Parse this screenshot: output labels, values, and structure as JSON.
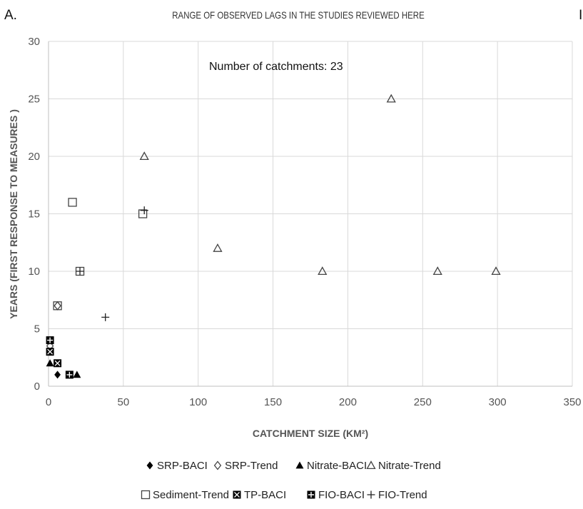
{
  "panel_label": "A.",
  "edge_fragment": "I",
  "chart_data": {
    "type": "scatter",
    "title": "RANGE OF OBSERVED LAGS  IN THE STUDIES REVIEWED HERE",
    "xlabel": "CATCHMENT SIZE (KM²)",
    "ylabel": "YEARS (FIRST RESPONSE TO MEASURES )",
    "xlim": [
      0,
      350
    ],
    "ylim": [
      0,
      30
    ],
    "x_ticks": [
      0,
      50,
      100,
      150,
      200,
      250,
      300,
      350
    ],
    "y_ticks": [
      0,
      5,
      10,
      15,
      20,
      25,
      30
    ],
    "grid": true,
    "legend_placement": "bottom",
    "annotation": "Number of catchments: 23",
    "series": [
      {
        "name": "SRP-BACI",
        "marker": "diamond-filled",
        "points": [
          [
            6,
            1
          ]
        ]
      },
      {
        "name": "SRP-Trend",
        "marker": "diamond-open",
        "points": [
          [
            1,
            3.5
          ],
          [
            6,
            7
          ]
        ]
      },
      {
        "name": "Nitrate-BACI",
        "marker": "triangle-filled",
        "points": [
          [
            1,
            2
          ],
          [
            19,
            1
          ]
        ]
      },
      {
        "name": "Nitrate-Trend",
        "marker": "triangle-open",
        "points": [
          [
            64,
            20
          ],
          [
            113,
            12
          ],
          [
            183,
            10
          ],
          [
            229,
            25
          ],
          [
            260,
            10
          ],
          [
            299,
            10
          ]
        ]
      },
      {
        "name": "Sediment-Trend",
        "marker": "square-open",
        "points": [
          [
            16,
            16
          ],
          [
            21,
            10
          ],
          [
            6,
            7
          ],
          [
            63,
            15
          ]
        ]
      },
      {
        "name": "TP-BACI",
        "marker": "square-x",
        "points": [
          [
            1,
            3
          ],
          [
            6,
            2
          ]
        ]
      },
      {
        "name": "FIO-BACI",
        "marker": "square-plus",
        "points": [
          [
            1,
            4
          ],
          [
            14,
            1
          ]
        ]
      },
      {
        "name": "FIO-Trend",
        "marker": "plus",
        "points": [
          [
            38,
            6
          ],
          [
            64,
            15.3
          ],
          [
            21,
            10
          ]
        ]
      }
    ]
  }
}
